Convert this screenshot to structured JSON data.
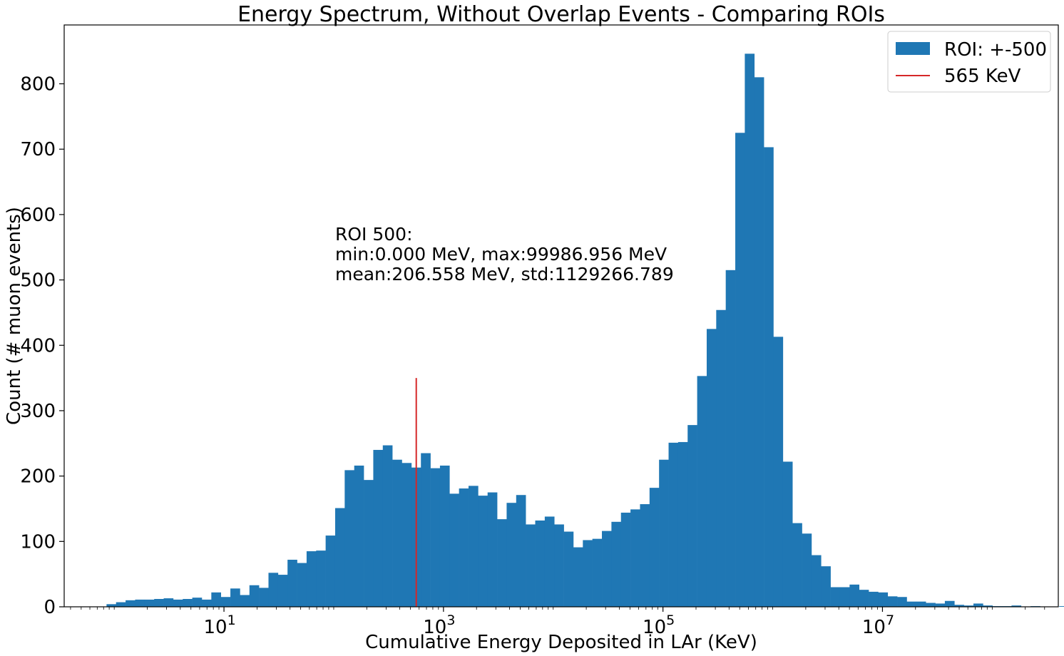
{
  "chart_data": {
    "type": "bar",
    "title": "Energy Spectrum, Without Overlap Events - Comparing ROIs",
    "xlabel": "Cumulative Energy Deposited in LAr (KeV)",
    "ylabel": "Count (# muon events)",
    "x_scale": "log",
    "xlim": [
      0.35,
      400000000
    ],
    "ylim": [
      0,
      890
    ],
    "x_ticks": [
      {
        "value": 10,
        "base": "10",
        "exp": "1"
      },
      {
        "value": 1000,
        "base": "10",
        "exp": "3"
      },
      {
        "value": 100000,
        "base": "10",
        "exp": "5"
      },
      {
        "value": 10000000,
        "base": "10",
        "exp": "7"
      }
    ],
    "y_ticks": [
      0,
      100,
      200,
      300,
      400,
      500,
      600,
      700,
      800
    ],
    "bins_log10": {
      "start": -0.07,
      "width": 0.0868
    },
    "series": [
      {
        "name": "ROI: +-500",
        "color": "#1f77b4",
        "values": [
          4,
          7,
          10,
          11,
          11,
          12,
          13,
          11,
          12,
          14,
          11,
          22,
          15,
          28,
          18,
          33,
          29,
          52,
          49,
          72,
          67,
          85,
          86,
          109,
          151,
          209,
          216,
          194,
          240,
          247,
          225,
          220,
          213,
          235,
          212,
          216,
          173,
          181,
          185,
          170,
          175,
          134,
          159,
          171,
          126,
          132,
          138,
          126,
          115,
          91,
          102,
          104,
          116,
          130,
          144,
          149,
          157,
          182,
          225,
          251,
          252,
          278,
          353,
          425,
          454,
          515,
          725,
          846,
          810,
          703,
          413,
          222,
          128,
          112,
          79,
          62,
          30,
          30,
          34,
          26,
          23,
          22,
          16,
          15,
          8,
          8,
          6,
          5,
          9,
          3,
          2,
          5,
          2,
          1,
          1,
          2,
          0,
          1,
          0,
          0,
          1,
          1,
          0,
          1,
          0,
          1
        ]
      }
    ],
    "vline": {
      "label": "565 KeV",
      "x": 565,
      "ymax": 350,
      "color": "#d62728"
    },
    "annotation": [
      "ROI 500:",
      "min:0.000 MeV, max:99986.956 MeV",
      "mean:206.558 MeV, std:1129266.789"
    ],
    "legend": {
      "placement": "top-right",
      "items": [
        {
          "label": "ROI: +-500",
          "kind": "patch",
          "color": "#1f77b4"
        },
        {
          "label": "565 KeV",
          "kind": "line",
          "color": "#d62728"
        }
      ]
    },
    "grid": false
  }
}
